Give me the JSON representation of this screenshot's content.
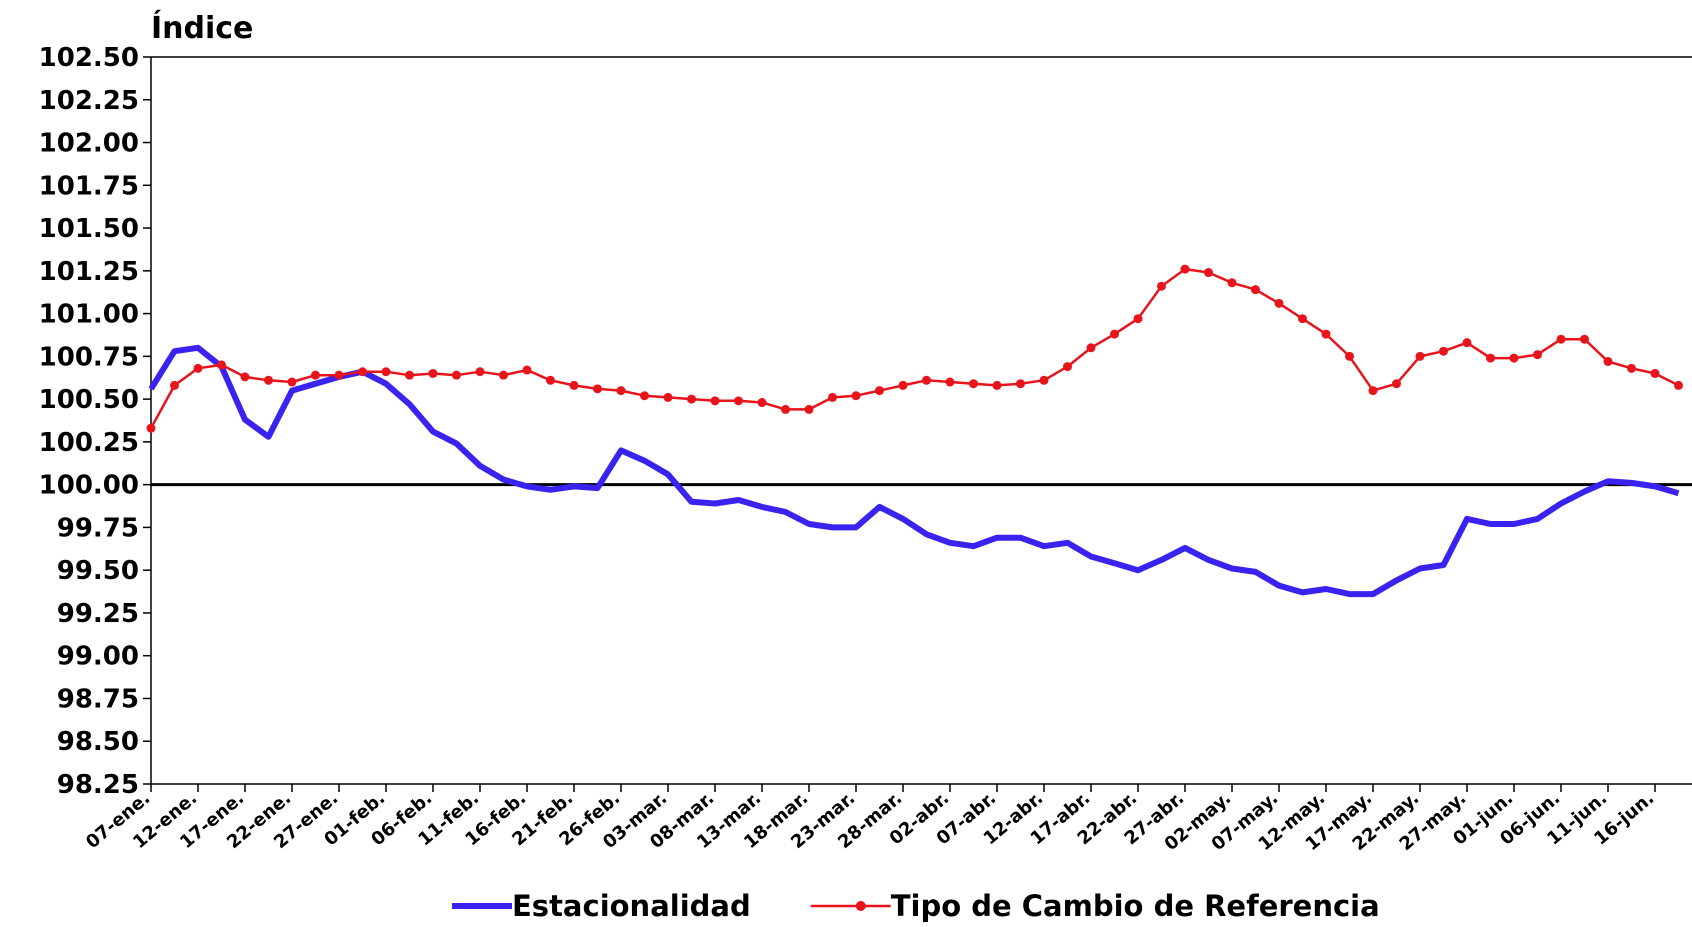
{
  "chart_data": {
    "type": "line",
    "y_label": "Índice",
    "categories": [
      "07-ene.",
      null,
      "12-ene.",
      null,
      "17-ene.",
      null,
      "22-ene.",
      null,
      "27-ene.",
      null,
      "01-feb.",
      null,
      "06-feb.",
      null,
      "11-feb.",
      null,
      "16-feb.",
      null,
      "21-feb.",
      null,
      "26-feb.",
      null,
      "03-mar.",
      null,
      "08-mar.",
      null,
      "13-mar.",
      null,
      "18-mar.",
      null,
      "23-mar.",
      null,
      "28-mar.",
      null,
      "02-abr.",
      null,
      "07-abr.",
      null,
      "12-abr.",
      null,
      "17-abr.",
      null,
      "22-abr.",
      null,
      "27-abr.",
      null,
      "02-may.",
      null,
      "07-may.",
      null,
      "12-may.",
      null,
      "17-may.",
      null,
      "22-may.",
      null,
      "27-may.",
      null,
      "01-jun.",
      null,
      "06-jun.",
      null,
      "11-jun.",
      null,
      "16-jun.",
      null
    ],
    "series": [
      {
        "name": "Estacionalidad",
        "color": "#3a22f0",
        "marker": false,
        "values": [
          100.56,
          100.78,
          100.8,
          100.69,
          100.38,
          100.28,
          100.55,
          100.59,
          100.63,
          100.66,
          100.59,
          100.47,
          100.31,
          100.24,
          100.11,
          100.03,
          99.99,
          99.97,
          99.99,
          99.98,
          100.2,
          100.14,
          100.06,
          99.9,
          99.89,
          99.91,
          99.87,
          99.84,
          99.77,
          99.75,
          99.75,
          99.87,
          99.8,
          99.71,
          99.66,
          99.64,
          99.69,
          99.69,
          99.64,
          99.66,
          99.58,
          99.54,
          99.5,
          99.56,
          99.63,
          99.56,
          99.51,
          99.49,
          99.41,
          99.37,
          99.39,
          99.36,
          99.36,
          99.44,
          99.51,
          99.53,
          99.8,
          99.77,
          99.77,
          99.8,
          99.89,
          99.96,
          100.02,
          100.01,
          99.99,
          99.95
        ]
      },
      {
        "name": "Tipo de Cambio de Referencia",
        "color": "#e8141b",
        "marker": true,
        "values": [
          100.33,
          100.58,
          100.68,
          100.7,
          100.63,
          100.61,
          100.6,
          100.64,
          100.64,
          100.66,
          100.66,
          100.64,
          100.65,
          100.64,
          100.66,
          100.64,
          100.67,
          100.61,
          100.58,
          100.56,
          100.55,
          100.52,
          100.51,
          100.5,
          100.49,
          100.49,
          100.48,
          100.44,
          100.44,
          100.51,
          100.52,
          100.55,
          100.58,
          100.61,
          100.6,
          100.59,
          100.58,
          100.59,
          100.61,
          100.69,
          100.8,
          100.88,
          100.97,
          101.16,
          101.26,
          101.24,
          101.18,
          101.14,
          101.06,
          100.97,
          100.88,
          100.75,
          100.55,
          100.59,
          100.75,
          100.78,
          100.83,
          100.74,
          100.74,
          100.76,
          100.85,
          100.85,
          100.72,
          100.68,
          100.65,
          100.58
        ]
      }
    ],
    "ylim": [
      98.25,
      102.5
    ],
    "yticks": [
      {
        "value": 98.25,
        "label": "98.25"
      },
      {
        "value": 98.5,
        "label": "98.50"
      },
      {
        "value": 98.75,
        "label": "98.75"
      },
      {
        "value": 99,
        "label": "99.00"
      },
      {
        "value": 99.25,
        "label": "99.25"
      },
      {
        "value": 99.5,
        "label": "99.50"
      },
      {
        "value": 99.75,
        "label": "99.75"
      },
      {
        "value": 100,
        "label": "100.00"
      },
      {
        "value": 100.25,
        "label": "100.25"
      },
      {
        "value": 100.5,
        "label": "100.50"
      },
      {
        "value": 100.75,
        "label": "100.75"
      },
      {
        "value": 101,
        "label": "101.00"
      },
      {
        "value": 101.25,
        "label": "101.25"
      },
      {
        "value": 101.5,
        "label": "101.50"
      },
      {
        "value": 101.75,
        "label": "101.75"
      },
      {
        "value": 102,
        "label": "102.00"
      },
      {
        "value": 102.25,
        "label": "102.25"
      },
      {
        "value": 102.5,
        "label": "102.50"
      }
    ],
    "reference_line": 100,
    "legend": "bottom"
  }
}
